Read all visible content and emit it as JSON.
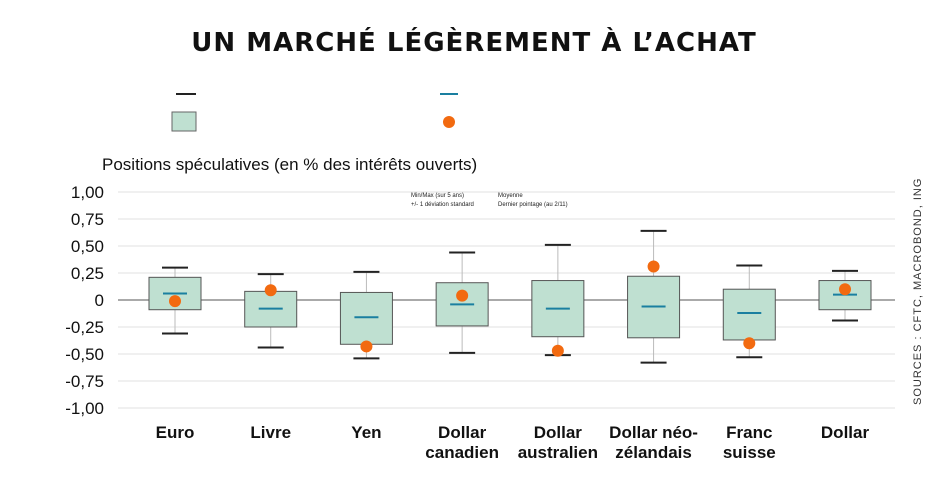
{
  "colors": {
    "box_fill": "#bfe0d1",
    "box_stroke": "#555555",
    "whisker": "#222222",
    "mean": "#1a7fa0",
    "latest": "#f26a10",
    "grid": "#e2e2e2",
    "zero_line": "#777777"
  },
  "chart_data": {
    "type": "box",
    "title": "UN MARCHÉ LÉGÈREMENT À L’ACHAT",
    "ylabel": "Positions spéculatives (en % des intérêts ouverts)",
    "ylim": [
      -1.0,
      1.0
    ],
    "yticks": [
      1.0,
      0.75,
      0.5,
      0.25,
      0,
      -0.25,
      -0.5,
      -0.75,
      -1.0
    ],
    "ytick_labels": [
      "1,00",
      "0,75",
      "0,50",
      "0,25",
      "0",
      "-0,25",
      "-0,50",
      "-0,75",
      "-1,00"
    ],
    "grid": true,
    "legend": {
      "placement": "top",
      "minmax": "Min/Max (sur 5 ans)",
      "stddev": "+/- 1 déviation standard",
      "mean": "Moyenne",
      "latest": "Dernier pointage (au 2/11)"
    },
    "source": "SOURCES : CFTC, MACROBOND, ING",
    "categories": [
      {
        "label": [
          "Euro"
        ],
        "min": -0.31,
        "max": 0.3,
        "box_low": -0.09,
        "box_high": 0.21,
        "mean": 0.06,
        "latest": -0.01
      },
      {
        "label": [
          "Livre"
        ],
        "min": -0.44,
        "max": 0.24,
        "box_low": -0.25,
        "box_high": 0.08,
        "mean": -0.08,
        "latest": 0.09
      },
      {
        "label": [
          "Yen"
        ],
        "min": -0.54,
        "max": 0.26,
        "box_low": -0.41,
        "box_high": 0.07,
        "mean": -0.16,
        "latest": -0.43
      },
      {
        "label": [
          "Dollar",
          "canadien"
        ],
        "min": -0.49,
        "max": 0.44,
        "box_low": -0.24,
        "box_high": 0.16,
        "mean": -0.04,
        "latest": 0.04
      },
      {
        "label": [
          "Dollar",
          "australien"
        ],
        "min": -0.51,
        "max": 0.51,
        "box_low": -0.34,
        "box_high": 0.18,
        "mean": -0.08,
        "latest": -0.47
      },
      {
        "label": [
          "Dollar néo-",
          "zélandais"
        ],
        "min": -0.58,
        "max": 0.64,
        "box_low": -0.35,
        "box_high": 0.22,
        "mean": -0.06,
        "latest": 0.31
      },
      {
        "label": [
          "Franc",
          "suisse"
        ],
        "min": -0.53,
        "max": 0.32,
        "box_low": -0.37,
        "box_high": 0.1,
        "mean": -0.12,
        "latest": -0.4
      },
      {
        "label": [
          "Dollar"
        ],
        "min": -0.19,
        "max": 0.27,
        "box_low": -0.09,
        "box_high": 0.18,
        "mean": 0.05,
        "latest": 0.1
      }
    ]
  }
}
